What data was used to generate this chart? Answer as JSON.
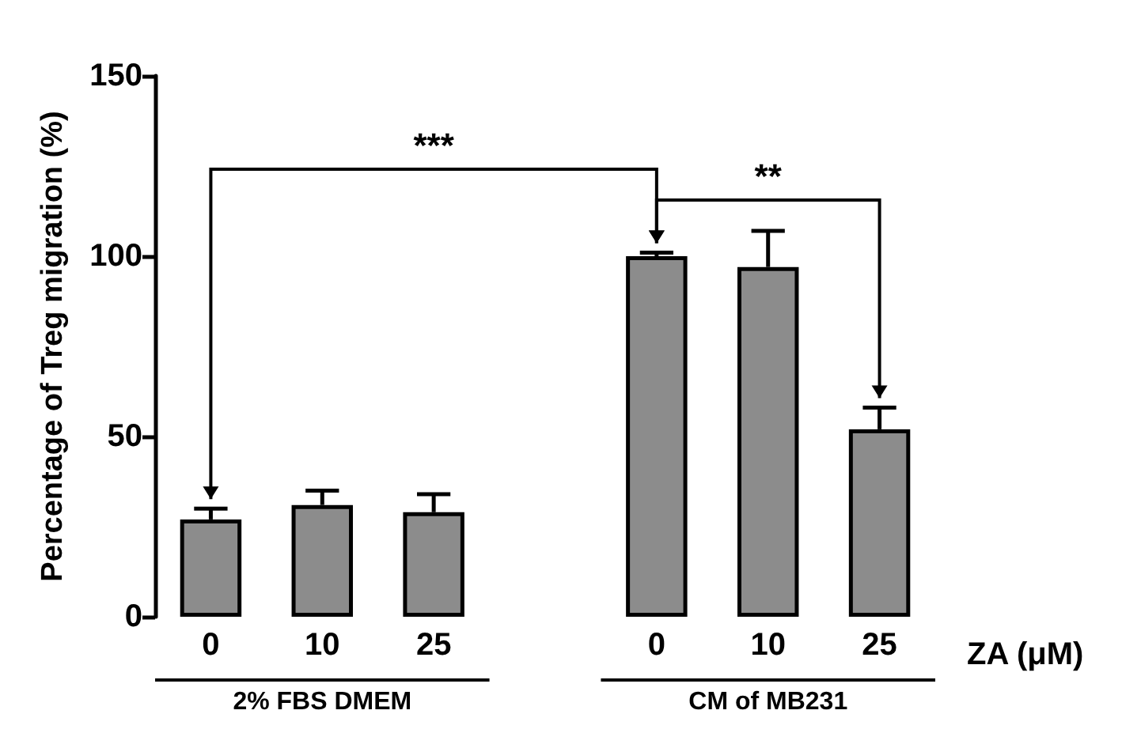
{
  "chart_data": {
    "type": "bar",
    "ylabel": "Percentage of Treg migration (%)",
    "xlabel": "ZA (μM)",
    "categories": [
      "0",
      "10",
      "25",
      null,
      "0",
      "10",
      "25"
    ],
    "values": [
      27,
      31,
      29,
      null,
      100,
      97,
      52
    ],
    "errors": [
      3,
      4,
      5,
      null,
      1,
      10,
      6
    ],
    "color": "#8c8c8c",
    "ylim": [
      0,
      150
    ],
    "yticks": [
      0,
      50,
      100,
      150
    ],
    "grid": false,
    "annotations": [
      "***",
      "**",
      "2% FBS DMEM",
      "CM of MB231"
    ]
  }
}
